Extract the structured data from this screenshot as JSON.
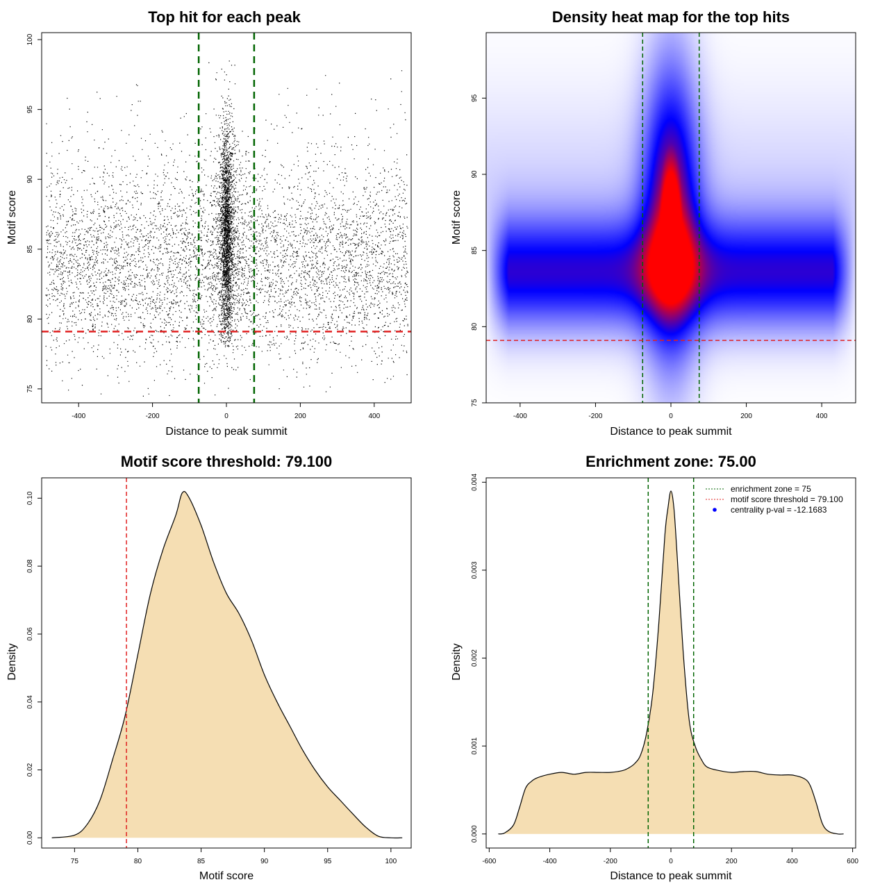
{
  "colors": {
    "green_line": "#006400",
    "red_line": "#e02020",
    "fill": "#f5deb3",
    "heat_low": "#ffffff",
    "heat_mid": "#0000ff",
    "heat_high": "#ff0000"
  },
  "chart_data": [
    {
      "type": "scatter",
      "title": "Top hit for each peak",
      "xlabel": "Distance to peak summit",
      "ylabel": "Motif score",
      "xlim": [
        -500,
        500
      ],
      "ylim": [
        74,
        100.5
      ],
      "xticks": [
        -400,
        -200,
        0,
        200,
        400
      ],
      "yticks": [
        75,
        80,
        85,
        90,
        95,
        100
      ],
      "vlines": [
        -75,
        75
      ],
      "hline": 79.1,
      "distribution": {
        "n_background": 5600,
        "n_central": 2600,
        "x_range": [
          -490,
          490
        ],
        "central_x_sd": 8,
        "background_score_mode": 83.5,
        "central_score_mode": 86,
        "max_score": 99
      }
    },
    {
      "type": "heatmap",
      "title": "Density heat map for the top hits",
      "xlabel": "Distance to peak summit",
      "ylabel": "Motif score",
      "xlim": [
        -490,
        490
      ],
      "ylim": [
        75,
        99.3
      ],
      "xticks": [
        -400,
        -200,
        0,
        200,
        400
      ],
      "yticks": [
        75,
        80,
        85,
        90,
        95
      ],
      "vlines": [
        -75,
        75
      ],
      "hline": 79.1,
      "color_scale": [
        "white",
        "blue",
        "red"
      ],
      "density_model": {
        "central_peak": {
          "x": 0,
          "y": 87.5,
          "sd_x": 32,
          "sd_y": 4.5
        },
        "background_band": {
          "y": 83.5,
          "sd_y": 2.5,
          "x_range": [
            -490,
            490
          ]
        }
      }
    },
    {
      "type": "area",
      "title": "Motif score threshold: 79.100",
      "xlabel": "Motif score",
      "ylabel": "Density",
      "xlim": [
        72.4,
        101.6
      ],
      "ylim": [
        -0.003,
        0.106
      ],
      "xticks": [
        75,
        80,
        85,
        90,
        95,
        100
      ],
      "yticks": [
        0.0,
        0.02,
        0.04,
        0.06,
        0.08,
        0.1
      ],
      "ytick_labels": [
        "0.00",
        "0.02",
        "0.04",
        "0.06",
        "0.08",
        "0.10"
      ],
      "vline": 79.1,
      "x": [
        73.2,
        75.0,
        76.0,
        77.0,
        78.0,
        79.0,
        80.0,
        81.0,
        82.0,
        83.0,
        83.5,
        84.0,
        85.0,
        86.0,
        87.0,
        88.0,
        89.0,
        90.0,
        91.0,
        92.0,
        93.0,
        94.0,
        95.0,
        96.0,
        97.0,
        98.0,
        99.0,
        100.0,
        100.9
      ],
      "y": [
        0.0,
        0.0008,
        0.004,
        0.011,
        0.023,
        0.036,
        0.054,
        0.072,
        0.085,
        0.095,
        0.1015,
        0.1005,
        0.092,
        0.081,
        0.072,
        0.066,
        0.058,
        0.048,
        0.04,
        0.033,
        0.026,
        0.02,
        0.015,
        0.011,
        0.007,
        0.0032,
        0.0005,
        0.0,
        0.0
      ]
    },
    {
      "type": "area",
      "title": "Enrichment zone: 75.00",
      "xlabel": "Distance to peak summit",
      "ylabel": "Density",
      "xlim": [
        -610,
        610
      ],
      "ylim": [
        -0.00016,
        0.00405
      ],
      "xticks": [
        -600,
        -400,
        -200,
        0,
        200,
        400,
        600
      ],
      "yticks": [
        0.0,
        0.001,
        0.002,
        0.003,
        0.004
      ],
      "ytick_labels": [
        "0.000",
        "0.001",
        "0.002",
        "0.003",
        "0.004"
      ],
      "vlines": [
        -75,
        75
      ],
      "legend": {
        "placement": "top-right",
        "entries": [
          {
            "label": "enrichment zone = 75",
            "style": "green-dotted"
          },
          {
            "label": "motif score threshold = 79.100",
            "style": "red-dotted"
          },
          {
            "label": "centrality p-val = -12.1683",
            "style": "blue-dot"
          }
        ]
      },
      "x": [
        -570,
        -550,
        -520,
        -500,
        -480,
        -460,
        -440,
        -400,
        -360,
        -320,
        -280,
        -240,
        -200,
        -160,
        -140,
        -120,
        -100,
        -80,
        -60,
        -40,
        -20,
        -10,
        0,
        10,
        20,
        40,
        60,
        80,
        100,
        120,
        160,
        200,
        240,
        280,
        320,
        360,
        400,
        440,
        460,
        480,
        500,
        520,
        550,
        570
      ],
      "y": [
        0.0,
        1e-05,
        0.0001,
        0.0003,
        0.00052,
        0.0006,
        0.00064,
        0.00068,
        0.0007,
        0.00068,
        0.0007,
        0.0007,
        0.0007,
        0.00072,
        0.00075,
        0.0008,
        0.0009,
        0.00115,
        0.0016,
        0.0024,
        0.0034,
        0.0037,
        0.0039,
        0.0037,
        0.0032,
        0.0021,
        0.0013,
        0.001,
        0.00085,
        0.00076,
        0.00072,
        0.0007,
        0.00071,
        0.00071,
        0.00068,
        0.00067,
        0.00067,
        0.00063,
        0.00055,
        0.00035,
        0.00012,
        3e-05,
        0.0,
        0.0
      ]
    }
  ]
}
